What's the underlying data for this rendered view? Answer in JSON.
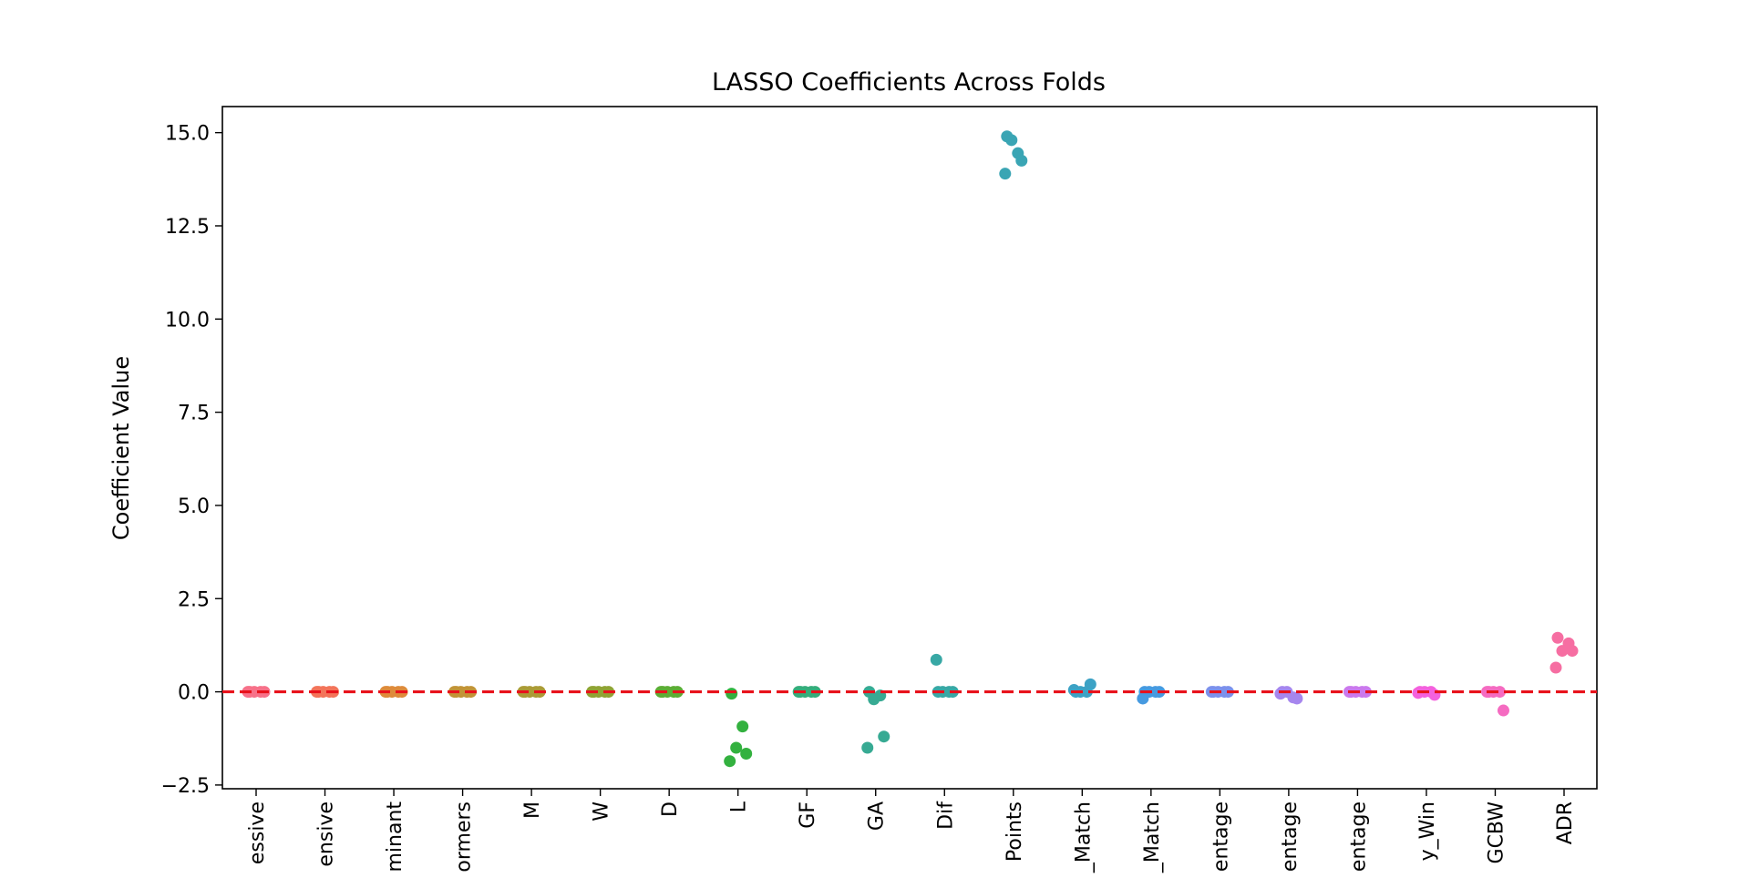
{
  "chart_data": {
    "type": "scatter",
    "title": "LASSO Coefficients Across Folds",
    "xlabel": "",
    "ylabel": "Coefficient Value",
    "ylim": [
      -2.6,
      15.7
    ],
    "yticks": [
      -2.5,
      0.0,
      2.5,
      5.0,
      7.5,
      10.0,
      12.5,
      15.0
    ],
    "ytick_labels": [
      "−2.5",
      "0.0",
      "2.5",
      "5.0",
      "7.5",
      "10.0",
      "12.5",
      "15.0"
    ],
    "reference_line": {
      "y": 0,
      "style": "dashed",
      "color": "#e8111b"
    },
    "grid": false,
    "legend": "none",
    "categories": [
      {
        "label": "essive",
        "color": "#f77189",
        "values": [
          0.0,
          0.0,
          0.0,
          0.0,
          0.0
        ]
      },
      {
        "label": "ensive",
        "color": "#f3745a",
        "values": [
          0.0,
          0.0,
          0.0,
          0.0,
          0.0
        ]
      },
      {
        "label": "minant",
        "color": "#de8b3b",
        "values": [
          0.0,
          0.0,
          0.0,
          0.0,
          0.0
        ]
      },
      {
        "label": "ormers",
        "color": "#c29437",
        "values": [
          0.0,
          0.0,
          0.0,
          0.0,
          0.0
        ]
      },
      {
        "label": "M",
        "color": "#ab9b36",
        "values": [
          0.0,
          0.0,
          0.0,
          0.0,
          0.0
        ]
      },
      {
        "label": "W",
        "color": "#90a334",
        "values": [
          0.0,
          0.0,
          0.0,
          0.0,
          0.0
        ]
      },
      {
        "label": "D",
        "color": "#5cad35",
        "values": [
          0.0,
          0.0,
          0.0,
          0.0,
          0.0
        ]
      },
      {
        "label": "L",
        "color": "#33b13f",
        "values": [
          -0.05,
          -0.93,
          -1.5,
          -1.66,
          -1.86
        ]
      },
      {
        "label": "GF",
        "color": "#35ad7b",
        "values": [
          0.0,
          0.0,
          0.0,
          0.0,
          0.0
        ]
      },
      {
        "label": "GA",
        "color": "#37aa93",
        "values": [
          0.0,
          -0.1,
          -0.2,
          -1.2,
          -1.5
        ]
      },
      {
        "label": "Dif",
        "color": "#38a8a5",
        "values": [
          0.0,
          0.0,
          0.0,
          0.0,
          0.86
        ]
      },
      {
        "label": "Points",
        "color": "#3aa5b4",
        "values": [
          14.9,
          14.45,
          14.8,
          14.25,
          13.9
        ]
      },
      {
        "label": "_Match",
        "color": "#3ca2c5",
        "values": [
          0.0,
          0.0,
          0.0,
          0.2,
          0.05
        ]
      },
      {
        "label": "_Match",
        "color": "#469ae0",
        "values": [
          0.0,
          0.0,
          0.0,
          0.0,
          -0.18
        ]
      },
      {
        "label": "entage",
        "color": "#7c91ec",
        "values": [
          0.0,
          0.0,
          0.0,
          0.0,
          0.0
        ]
      },
      {
        "label": "entage",
        "color": "#a686ee",
        "values": [
          0.0,
          -0.15,
          0.0,
          -0.18,
          -0.05
        ]
      },
      {
        "label": "entage",
        "color": "#cb79ed",
        "values": [
          0.0,
          0.0,
          0.0,
          0.0,
          0.0
        ]
      },
      {
        "label": "y_Win",
        "color": "#f461dd",
        "values": [
          0.0,
          0.0,
          0.0,
          -0.08,
          -0.03
        ]
      },
      {
        "label": "GCBW",
        "color": "#f56bc1",
        "values": [
          0.0,
          0.0,
          0.0,
          -0.5,
          0.0
        ]
      },
      {
        "label": "ADR",
        "color": "#f66ea2",
        "values": [
          1.45,
          1.3,
          1.1,
          1.1,
          0.65
        ]
      }
    ]
  }
}
